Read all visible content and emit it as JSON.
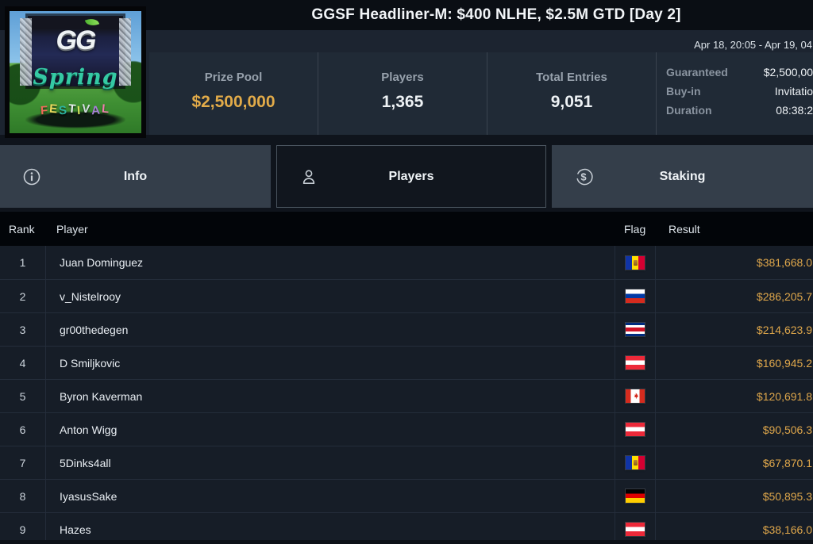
{
  "header": {
    "title": "GGSF Headliner-M: $400 NLHE, $2.5M GTD [Day 2]",
    "date_range": "Apr 18, 20:05 - Apr 19, 04",
    "stats": [
      {
        "label": "Prize Pool",
        "value": "$2,500,000"
      },
      {
        "label": "Players",
        "value": "1,365"
      },
      {
        "label": "Total Entries",
        "value": "9,051"
      }
    ],
    "details": [
      {
        "label": "Guaranteed",
        "value": "$2,500,00"
      },
      {
        "label": "Buy-in",
        "value": "Invitatio"
      },
      {
        "label": "Duration",
        "value": "08:38:2"
      }
    ]
  },
  "logo": {
    "gg": "GG",
    "spring": "Spring",
    "festival_letters": [
      "F",
      "E",
      "S",
      "T",
      "I",
      "V",
      "A",
      "L"
    ]
  },
  "tabs": [
    {
      "label": "Info",
      "icon": "info-icon",
      "active": false
    },
    {
      "label": "Players",
      "icon": "person-icon",
      "active": true
    },
    {
      "label": "Staking",
      "icon": "dollar-icon",
      "active": false
    }
  ],
  "table": {
    "columns": [
      "Rank",
      "Player",
      "Flag",
      "Result"
    ],
    "rows": [
      {
        "rank": "1",
        "player": "Juan Dominguez",
        "flag": "andorra",
        "result": "$381,668.0"
      },
      {
        "rank": "2",
        "player": "v_Nistelrooy",
        "flag": "russia",
        "result": "$286,205.7"
      },
      {
        "rank": "3",
        "player": "gr00thedegen",
        "flag": "costa-rica",
        "result": "$214,623.9"
      },
      {
        "rank": "4",
        "player": "D Smiljkovic",
        "flag": "austria",
        "result": "$160,945.2"
      },
      {
        "rank": "5",
        "player": "Byron Kaverman",
        "flag": "canada",
        "result": "$120,691.8"
      },
      {
        "rank": "6",
        "player": "Anton Wigg",
        "flag": "austria",
        "result": "$90,506.3"
      },
      {
        "rank": "7",
        "player": "5Dinks4all",
        "flag": "andorra",
        "result": "$67,870.1"
      },
      {
        "rank": "8",
        "player": "IyasusSake",
        "flag": "germany",
        "result": "$50,895.3"
      },
      {
        "rank": "9",
        "player": "Hazes",
        "flag": "austria",
        "result": "$38,166.0"
      }
    ]
  },
  "colors": {
    "accent_gold": "#dfa74b",
    "prize_gold": "#e2ab49",
    "tab_active_bg": "#11161e",
    "tab_inactive_bg": "#343e4a",
    "row_bg": "#161d27",
    "header_bg": "#020509"
  }
}
